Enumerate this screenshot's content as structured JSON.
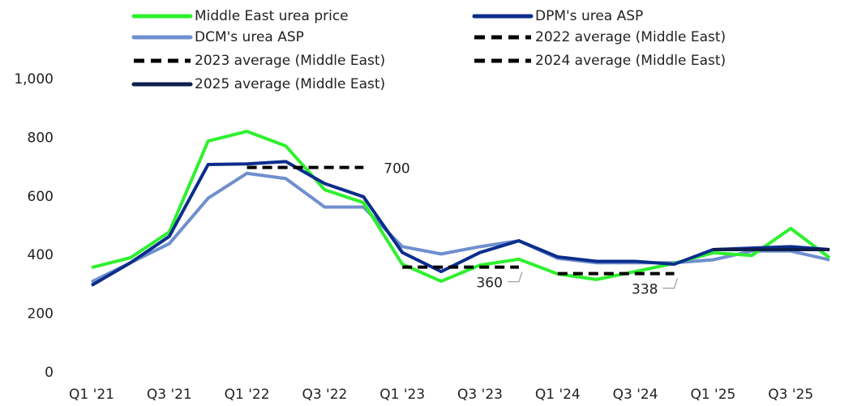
{
  "chart_data": {
    "type": "line",
    "categories": [
      "Q1 '21",
      null,
      "Q3 '21",
      null,
      "Q1 '22",
      null,
      "Q3 '22",
      null,
      "Q1 '23",
      null,
      "Q3 '23",
      null,
      "Q1 '24",
      null,
      "Q3 '24",
      null,
      "Q1 '25",
      null,
      "Q3 '25",
      null
    ],
    "ylim": [
      0,
      1000
    ],
    "yticks": [
      0,
      200,
      400,
      600,
      800,
      {
        "value": 1000,
        "label": "1,000"
      }
    ],
    "series": [
      {
        "name": "Middle East urea price",
        "color": "#2ef02e",
        "dashed": false,
        "values": [
          359,
          392,
          480,
          790,
          823,
          773,
          624,
          580,
          370,
          312,
          367,
          387,
          337,
          318,
          345,
          373,
          409,
          400,
          492,
          392
        ]
      },
      {
        "name": "DPM's urea ASP",
        "color": "#0b2d8c",
        "dashed": false,
        "values": [
          298,
          375,
          465,
          710,
          712,
          720,
          645,
          600,
          410,
          345,
          410,
          450,
          395,
          380,
          380,
          370,
          420,
          425,
          430,
          420
        ]
      },
      {
        "name": "DCM's urea ASP",
        "color": "#6f8fcf",
        "dashed": false,
        "values": [
          310,
          375,
          440,
          595,
          680,
          662,
          565,
          565,
          430,
          405,
          430,
          450,
          390,
          375,
          375,
          375,
          385,
          415,
          415,
          385
        ]
      },
      {
        "name": "2022 average (Middle East)",
        "color": "#000000",
        "dashed": true,
        "values": [
          null,
          null,
          null,
          null,
          700,
          700,
          700,
          700,
          null,
          null,
          null,
          null,
          null,
          null,
          null,
          null,
          null,
          null,
          null,
          null
        ]
      },
      {
        "name": "2023 average (Middle East)",
        "color": "#000000",
        "dashed": true,
        "values": [
          null,
          null,
          null,
          null,
          null,
          null,
          null,
          null,
          360,
          360,
          360,
          360,
          null,
          null,
          null,
          null,
          null,
          null,
          null,
          null
        ]
      },
      {
        "name": "2024 average (Middle East)",
        "color": "#000000",
        "dashed": true,
        "values": [
          null,
          null,
          null,
          null,
          null,
          null,
          null,
          null,
          null,
          null,
          null,
          null,
          338,
          338,
          338,
          338,
          null,
          null,
          null,
          null
        ]
      },
      {
        "name": "2025 average (Middle East)",
        "color": "#0d1f4f",
        "dashed": false,
        "values": [
          null,
          null,
          null,
          null,
          null,
          null,
          null,
          null,
          null,
          null,
          null,
          null,
          null,
          null,
          null,
          null,
          420,
          420,
          420,
          420
        ]
      }
    ]
  }
}
